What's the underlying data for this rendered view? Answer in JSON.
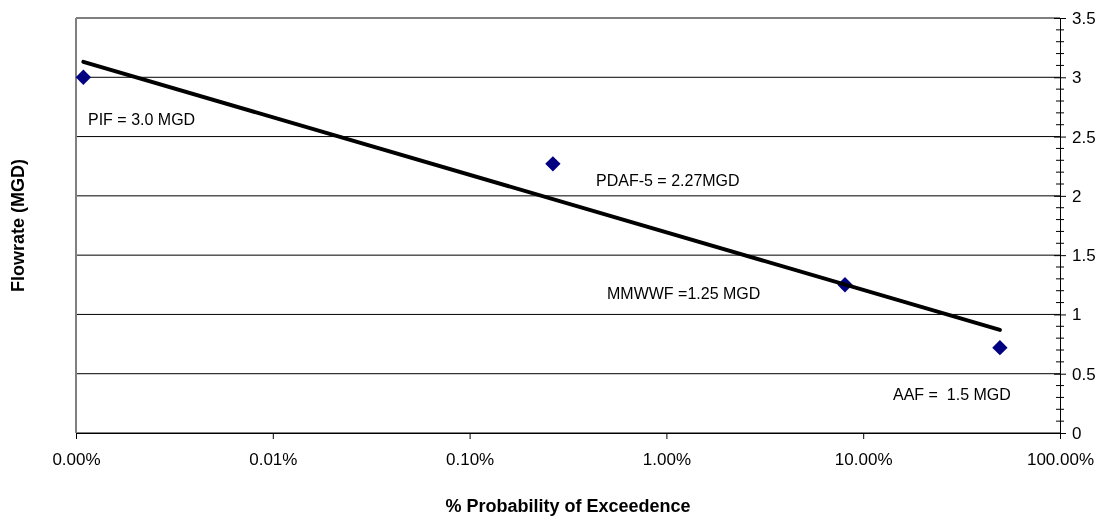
{
  "chart_data": {
    "type": "scatter",
    "xlabel": "% Probability of Exceedence",
    "ylabel": "Flowrate (MGD)",
    "log": "x",
    "xlim": [
      0.001,
      100
    ],
    "xticks": [
      {
        "value": 0.001,
        "label": "0.00%"
      },
      {
        "value": 0.01,
        "label": "0.01%"
      },
      {
        "value": 0.1,
        "label": "0.10%"
      },
      {
        "value": 1,
        "label": "1.00%"
      },
      {
        "value": 10,
        "label": "10.00%"
      },
      {
        "value": 100,
        "label": "100.00%"
      }
    ],
    "ylim": [
      0,
      3.5
    ],
    "yticks": [
      0,
      0.5,
      1,
      1.5,
      2,
      2.5,
      3,
      3.5
    ],
    "grid": "y",
    "series": [
      {
        "marker": "diamond",
        "color": "#000080",
        "x": [
          0.00109,
          0.265,
          8.08,
          49.5
        ],
        "values": [
          3.0,
          2.27,
          1.25,
          0.72
        ]
      },
      {
        "type": "line",
        "color": "#000000",
        "line_style": "solid",
        "x": [
          0.00109,
          49.5
        ],
        "values": [
          3.13,
          0.87
        ]
      }
    ],
    "annotations": [
      "PIF = 3.0 MGD",
      "PDAF-5 = 2.27MGD",
      "MMWWF =1.25 MGD",
      "AAF =  1.5 MGD"
    ]
  }
}
